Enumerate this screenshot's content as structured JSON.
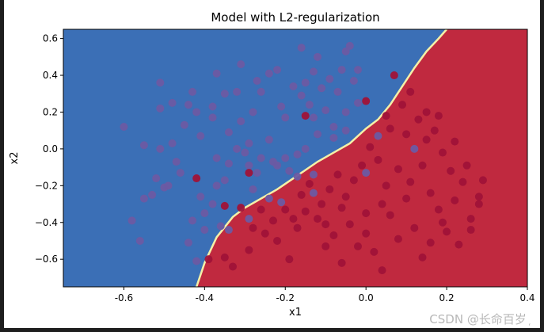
{
  "chart_data": {
    "type": "scatter",
    "title": "Model with L2-regularization",
    "xlabel": "x1",
    "ylabel": "x2",
    "xlim": [
      -0.75,
      0.4
    ],
    "ylim": [
      -0.75,
      0.65
    ],
    "x_ticks": [
      "-0.6",
      "-0.4",
      "-0.2",
      "0.0",
      "0.2",
      "0.4"
    ],
    "y_ticks": [
      "0.6",
      "0.4",
      "0.2",
      "0.0",
      "−0.2",
      "−0.4",
      "−0.6"
    ],
    "x_tick_values": [
      -0.6,
      -0.4,
      -0.2,
      0.0,
      0.2,
      0.4
    ],
    "y_tick_values": [
      0.6,
      0.4,
      0.2,
      0.0,
      -0.2,
      -0.4,
      -0.6
    ],
    "region_colors": {
      "blue": "#3b6fb6",
      "red": "#c0293f",
      "boundary": "#f4f0a8"
    },
    "point_colors": {
      "blue_class": "#6b5aa3",
      "red_class": "#a01238"
    },
    "decision_boundary": [
      [
        -0.42,
        -0.75
      ],
      [
        -0.4,
        -0.62
      ],
      [
        -0.37,
        -0.48
      ],
      [
        -0.33,
        -0.37
      ],
      [
        -0.3,
        -0.32
      ],
      [
        -0.26,
        -0.27
      ],
      [
        -0.22,
        -0.22
      ],
      [
        -0.18,
        -0.16
      ],
      [
        -0.12,
        -0.07
      ],
      [
        -0.08,
        -0.02
      ],
      [
        -0.04,
        0.03
      ],
      [
        0.0,
        0.11
      ],
      [
        0.03,
        0.16
      ],
      [
        0.06,
        0.24
      ],
      [
        0.09,
        0.34
      ],
      [
        0.12,
        0.44
      ],
      [
        0.15,
        0.53
      ],
      [
        0.18,
        0.6
      ],
      [
        0.2,
        0.65
      ]
    ],
    "series": [
      {
        "color_key": "blue_class",
        "points": [
          [
            -0.6,
            0.12
          ],
          [
            -0.55,
            0.02
          ],
          [
            -0.51,
            0.22
          ],
          [
            -0.51,
            0.36
          ],
          [
            -0.48,
            0.03
          ],
          [
            -0.47,
            -0.07
          ],
          [
            -0.52,
            -0.16
          ],
          [
            -0.5,
            -0.21
          ],
          [
            -0.49,
            -0.2
          ],
          [
            -0.53,
            -0.25
          ],
          [
            -0.45,
            0.13
          ],
          [
            -0.48,
            0.25
          ],
          [
            -0.44,
            0.24
          ],
          [
            -0.43,
            0.31
          ],
          [
            -0.42,
            0.2
          ],
          [
            -0.41,
            0.07
          ],
          [
            -0.38,
            0.23
          ],
          [
            -0.38,
            0.17
          ],
          [
            -0.37,
            0.41
          ],
          [
            -0.35,
            0.3
          ],
          [
            -0.34,
            0.09
          ],
          [
            -0.32,
            0.31
          ],
          [
            -0.31,
            0.15
          ],
          [
            -0.31,
            0.46
          ],
          [
            -0.29,
            0.03
          ],
          [
            -0.28,
            0.2
          ],
          [
            -0.27,
            0.37
          ],
          [
            -0.26,
            0.31
          ],
          [
            -0.24,
            0.05
          ],
          [
            -0.24,
            0.41
          ],
          [
            -0.22,
            0.43
          ],
          [
            -0.21,
            0.23
          ],
          [
            -0.2,
            0.17
          ],
          [
            -0.18,
            0.34
          ],
          [
            -0.16,
            0.29
          ],
          [
            -0.16,
            0.55
          ],
          [
            -0.15,
            0.36
          ],
          [
            -0.14,
            0.24
          ],
          [
            -0.13,
            0.17
          ],
          [
            -0.13,
            0.42
          ],
          [
            -0.12,
            0.5
          ],
          [
            -0.11,
            0.33
          ],
          [
            -0.1,
            0.21
          ],
          [
            -0.09,
            0.38
          ],
          [
            -0.08,
            0.06
          ],
          [
            -0.07,
            0.31
          ],
          [
            -0.06,
            0.43
          ],
          [
            -0.05,
            0.53
          ],
          [
            -0.05,
            0.2
          ],
          [
            -0.04,
            0.56
          ],
          [
            -0.03,
            0.37
          ],
          [
            -0.02,
            0.25
          ],
          [
            -0.37,
            -0.05
          ],
          [
            -0.35,
            -0.17
          ],
          [
            -0.34,
            -0.08
          ],
          [
            -0.32,
            0.0
          ],
          [
            -0.3,
            -0.02
          ],
          [
            -0.29,
            -0.09
          ],
          [
            -0.27,
            -0.13
          ],
          [
            -0.26,
            -0.05
          ],
          [
            -0.23,
            -0.07
          ],
          [
            -0.22,
            -0.09
          ],
          [
            -0.2,
            -0.05
          ],
          [
            -0.19,
            -0.12
          ],
          [
            -0.17,
            -0.03
          ],
          [
            -0.17,
            -0.15
          ],
          [
            -0.15,
            0.0
          ],
          [
            -0.13,
            -0.14
          ],
          [
            -0.13,
            -0.24
          ],
          [
            -0.12,
            0.08
          ],
          [
            -0.41,
            -0.26
          ],
          [
            -0.4,
            -0.35
          ],
          [
            -0.38,
            -0.3
          ],
          [
            -0.37,
            -0.2
          ],
          [
            -0.36,
            -0.42
          ],
          [
            -0.4,
            -0.44
          ],
          [
            -0.43,
            -0.39
          ],
          [
            -0.44,
            -0.51
          ],
          [
            -0.42,
            -0.61
          ],
          [
            -0.34,
            -0.44
          ],
          [
            -0.29,
            -0.38
          ],
          [
            -0.28,
            -0.22
          ],
          [
            -0.24,
            -0.27
          ],
          [
            -0.21,
            -0.29
          ],
          [
            -0.55,
            -0.27
          ],
          [
            -0.58,
            -0.39
          ],
          [
            -0.56,
            -0.5
          ],
          [
            0.03,
            0.07
          ],
          [
            0.12,
            0.0
          ],
          [
            0.0,
            -0.13
          ],
          [
            -0.51,
            0.0
          ],
          [
            -0.46,
            -0.13
          ],
          [
            -0.08,
            0.12
          ],
          [
            -0.05,
            0.1
          ],
          [
            -0.02,
            0.43
          ]
        ]
      },
      {
        "color_key": "red_class",
        "points": [
          [
            -0.15,
            0.18
          ],
          [
            0.0,
            0.26
          ],
          [
            -0.42,
            -0.16
          ],
          [
            -0.29,
            -0.13
          ],
          [
            -0.35,
            -0.31
          ],
          [
            -0.31,
            -0.32
          ],
          [
            -0.39,
            -0.6
          ],
          [
            -0.35,
            -0.59
          ],
          [
            -0.33,
            -0.64
          ],
          [
            -0.29,
            -0.55
          ],
          [
            -0.25,
            -0.46
          ],
          [
            -0.22,
            -0.5
          ],
          [
            -0.19,
            -0.6
          ],
          [
            -0.17,
            -0.43
          ],
          [
            -0.15,
            -0.34
          ],
          [
            -0.12,
            -0.38
          ],
          [
            -0.1,
            -0.53
          ],
          [
            -0.08,
            -0.47
          ],
          [
            -0.06,
            -0.62
          ],
          [
            -0.04,
            -0.41
          ],
          [
            -0.02,
            -0.53
          ],
          [
            0.0,
            -0.46
          ],
          [
            0.02,
            -0.56
          ],
          [
            0.04,
            -0.66
          ],
          [
            0.06,
            -0.36
          ],
          [
            0.08,
            -0.49
          ],
          [
            0.1,
            -0.27
          ],
          [
            0.12,
            -0.43
          ],
          [
            0.14,
            -0.59
          ],
          [
            0.16,
            -0.51
          ],
          [
            0.18,
            -0.33
          ],
          [
            0.2,
            -0.45
          ],
          [
            0.22,
            -0.28
          ],
          [
            0.24,
            -0.18
          ],
          [
            0.26,
            -0.38
          ],
          [
            0.28,
            -0.26
          ],
          [
            0.29,
            -0.17
          ],
          [
            0.25,
            -0.09
          ],
          [
            0.21,
            -0.12
          ],
          [
            0.19,
            -0.02
          ],
          [
            0.17,
            0.1
          ],
          [
            0.15,
            0.05
          ],
          [
            0.13,
            0.16
          ],
          [
            0.11,
            0.31
          ],
          [
            0.09,
            0.24
          ],
          [
            0.07,
            0.4
          ],
          [
            0.05,
            0.18
          ],
          [
            0.03,
            -0.06
          ],
          [
            0.01,
            0.01
          ],
          [
            -0.01,
            -0.09
          ],
          [
            -0.03,
            -0.17
          ],
          [
            -0.05,
            -0.26
          ],
          [
            -0.07,
            -0.14
          ],
          [
            -0.09,
            -0.22
          ],
          [
            -0.11,
            -0.3
          ],
          [
            -0.14,
            -0.19
          ],
          [
            -0.16,
            -0.25
          ],
          [
            -0.18,
            -0.38
          ],
          [
            -0.2,
            -0.33
          ],
          [
            -0.23,
            -0.39
          ],
          [
            -0.26,
            -0.33
          ],
          [
            -0.28,
            -0.43
          ],
          [
            0.05,
            -0.2
          ],
          [
            0.08,
            -0.11
          ],
          [
            0.11,
            -0.18
          ],
          [
            0.14,
            -0.09
          ],
          [
            0.16,
            -0.24
          ],
          [
            0.19,
            -0.4
          ],
          [
            0.23,
            -0.52
          ],
          [
            0.26,
            -0.44
          ],
          [
            0.28,
            -0.3
          ],
          [
            0.22,
            0.04
          ],
          [
            0.15,
            0.2
          ],
          [
            0.1,
            0.08
          ],
          [
            0.06,
            0.11
          ],
          [
            0.18,
            0.18
          ],
          [
            0.04,
            -0.3
          ],
          [
            0.0,
            -0.35
          ],
          [
            -0.06,
            -0.32
          ],
          [
            -0.1,
            -0.41
          ]
        ]
      }
    ]
  },
  "watermark": "CSDN @长命百岁 ᷊"
}
